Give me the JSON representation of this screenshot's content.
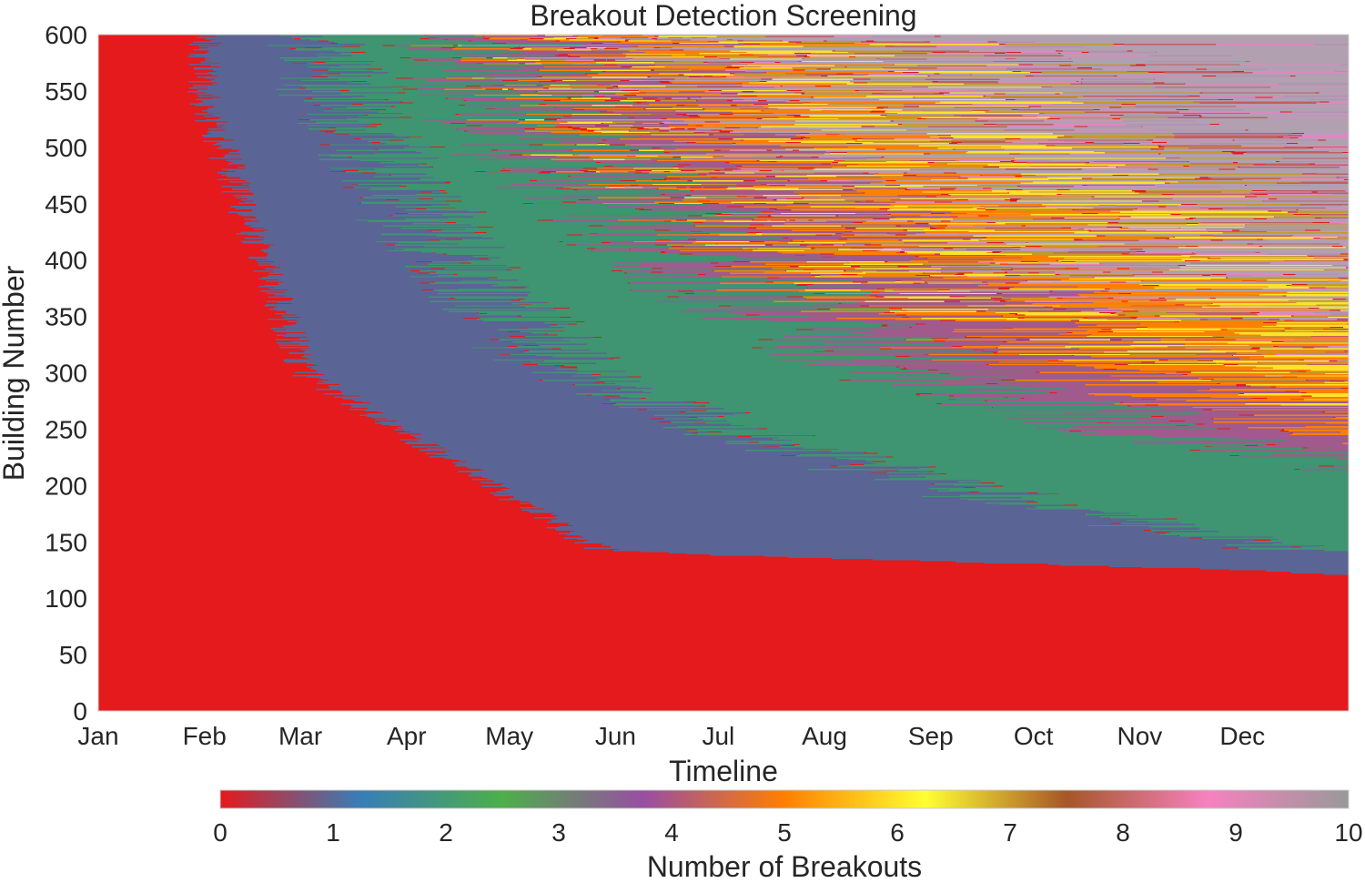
{
  "chart_data": {
    "type": "heatmap",
    "title": "Breakout Detection Screening",
    "xlabel": "Timeline",
    "ylabel": "Building Number",
    "x_categories": [
      "Jan",
      "Feb",
      "Mar",
      "Apr",
      "May",
      "Jun",
      "Jul",
      "Aug",
      "Sep",
      "Oct",
      "Nov",
      "Dec"
    ],
    "x_range_days": [
      0,
      365
    ],
    "month_start_days": [
      0,
      31,
      59,
      90,
      120,
      151,
      181,
      212,
      243,
      273,
      304,
      334
    ],
    "ylim": [
      0,
      600
    ],
    "y_ticks": [
      0,
      50,
      100,
      150,
      200,
      250,
      300,
      350,
      400,
      450,
      500,
      550,
      600
    ],
    "colorbar": {
      "label": "Number of Breakouts",
      "vmin": 0,
      "vmax": 10,
      "ticks": [
        0,
        1,
        2,
        3,
        4,
        5,
        6,
        7,
        8,
        9,
        10
      ],
      "colors": [
        "#e41a1c",
        "#377eb8",
        "#4daf4a",
        "#984ea3",
        "#ff7f00",
        "#ffff33",
        "#a65628",
        "#f781bf",
        "#999999"
      ]
    },
    "level_colors": [
      "#e41a1c",
      "#5a6595",
      "#3f9471",
      "#a05a8c",
      "#ff7f00",
      "#ffe228",
      "#c49a2a",
      "#c06060",
      "#e087c0",
      "#b48fb4",
      "#b0a0b0"
    ],
    "onset_day_threshold_points": [
      [
        0,
        600,
        600,
        600,
        600,
        600,
        600,
        600,
        600,
        600,
        600
      ],
      [
        600,
        600,
        600,
        600,
        600,
        600,
        600,
        600,
        600,
        600,
        600
      ]
    ],
    "grid": false,
    "legend": "none"
  }
}
